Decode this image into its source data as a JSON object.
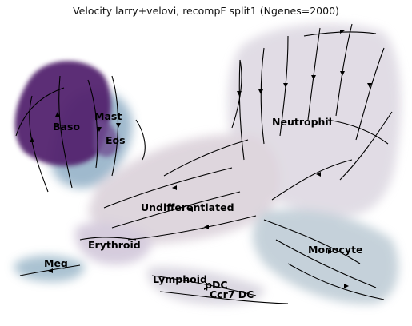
{
  "chart_data": {
    "type": "scatter",
    "title": "Velocity larry+velovi, recompF split1 (Ngenes=2000)",
    "xlabel": "",
    "ylabel": "",
    "axes_visible": false,
    "legend": "on data",
    "overlay": "velocity streamlines with arrows",
    "clusters": [
      {
        "name": "Baso",
        "color": "#5b2a78"
      },
      {
        "name": "Mast",
        "color": "#7fa1bd"
      },
      {
        "name": "Eos",
        "color": "#8b7aa6"
      },
      {
        "name": "Neutrophil",
        "color": "#d9d4df"
      },
      {
        "name": "Undifferentiated",
        "color": "#d7cdd6"
      },
      {
        "name": "Erythroid",
        "color": "#c8bcd2"
      },
      {
        "name": "Meg",
        "color": "#93b3c7"
      },
      {
        "name": "Monocyte",
        "color": "#b9c8d2"
      },
      {
        "name": "Lymphoid",
        "color": "#d6d3de"
      },
      {
        "name": "pDC",
        "color": "#9a86b3"
      },
      {
        "name": "Ccr7 DC",
        "color": "#b4a7c8"
      }
    ]
  }
}
